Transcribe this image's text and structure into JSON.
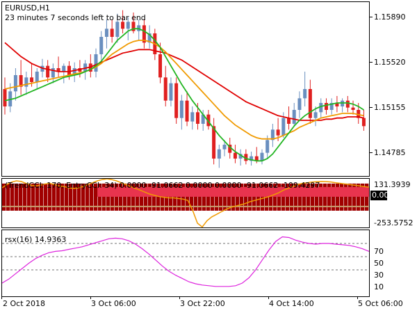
{
  "main_chart": {
    "symbol_title": "EURUSD,H1",
    "countdown": "23 minutes 7 seconds left to bar end",
    "price_labels": [
      "1.15890",
      "1.15520",
      "1.15155",
      "1.14785"
    ],
    "colors": {
      "bull": "#6a8fbf",
      "bear": "#e02020",
      "green_ma": "#22b522",
      "orange_ma": "#f09a00",
      "red_ma": "#e00000"
    }
  },
  "cci_panel": {
    "header": "(TrendCCI: 170, EntryCCI: 34)  0.0000 -91.0662 0.0000 0.0000 -91.0662 -109.4297",
    "scale_labels": [
      "131.3939",
      "0.00",
      "-253.5752"
    ],
    "current_value_badge": "0.00",
    "colors": {
      "histogram": "#a00000",
      "band": "#e8344e",
      "line": "#f09a00",
      "tan": "#c8a070"
    }
  },
  "rsx_panel": {
    "header": "rsx(16) 14.9363",
    "levels": [
      "70",
      "50",
      "30"
    ],
    "scale_labels": [
      "70",
      "50",
      "30",
      "10"
    ],
    "colors": {
      "line": "#dd22dd"
    }
  },
  "time_axis": [
    "2 Oct 2018",
    "3 Oct 06:00",
    "3 Oct 22:00",
    "4 Oct 14:00",
    "5 Oct 06:00"
  ],
  "chart_data": [
    {
      "type": "candlestick",
      "title": "EURUSD,H1",
      "ylim": [
        1.1455,
        1.1605
      ],
      "candles": [
        {
          "o": 1.153,
          "h": 1.154,
          "l": 1.1508,
          "c": 1.1515
        },
        {
          "o": 1.1515,
          "h": 1.1535,
          "l": 1.151,
          "c": 1.1528
        },
        {
          "o": 1.1528,
          "h": 1.1548,
          "l": 1.152,
          "c": 1.1542
        },
        {
          "o": 1.1542,
          "h": 1.1555,
          "l": 1.1525,
          "c": 1.1532
        },
        {
          "o": 1.1532,
          "h": 1.1545,
          "l": 1.1525,
          "c": 1.154
        },
        {
          "o": 1.154,
          "h": 1.1552,
          "l": 1.1532,
          "c": 1.1536
        },
        {
          "o": 1.1536,
          "h": 1.1548,
          "l": 1.153,
          "c": 1.1545
        },
        {
          "o": 1.1545,
          "h": 1.1556,
          "l": 1.154,
          "c": 1.155
        },
        {
          "o": 1.155,
          "h": 1.1555,
          "l": 1.1536,
          "c": 1.154
        },
        {
          "o": 1.154,
          "h": 1.1552,
          "l": 1.1535,
          "c": 1.1548
        },
        {
          "o": 1.1548,
          "h": 1.1558,
          "l": 1.154,
          "c": 1.1545
        },
        {
          "o": 1.1545,
          "h": 1.1552,
          "l": 1.1535,
          "c": 1.155
        },
        {
          "o": 1.155,
          "h": 1.1554,
          "l": 1.1538,
          "c": 1.1542
        },
        {
          "o": 1.1542,
          "h": 1.1553,
          "l": 1.1536,
          "c": 1.1548
        },
        {
          "o": 1.1548,
          "h": 1.1555,
          "l": 1.154,
          "c": 1.1545
        },
        {
          "o": 1.1545,
          "h": 1.1555,
          "l": 1.1538,
          "c": 1.1552
        },
        {
          "o": 1.1552,
          "h": 1.156,
          "l": 1.154,
          "c": 1.1545
        },
        {
          "o": 1.1545,
          "h": 1.1565,
          "l": 1.154,
          "c": 1.156
        },
        {
          "o": 1.156,
          "h": 1.158,
          "l": 1.1555,
          "c": 1.1575
        },
        {
          "o": 1.1575,
          "h": 1.159,
          "l": 1.1565,
          "c": 1.1582
        },
        {
          "o": 1.1582,
          "h": 1.159,
          "l": 1.157,
          "c": 1.1575
        },
        {
          "o": 1.1575,
          "h": 1.1595,
          "l": 1.157,
          "c": 1.1588
        },
        {
          "o": 1.1588,
          "h": 1.1598,
          "l": 1.1578,
          "c": 1.1582
        },
        {
          "o": 1.1582,
          "h": 1.1592,
          "l": 1.1572,
          "c": 1.1588
        },
        {
          "o": 1.1588,
          "h": 1.1596,
          "l": 1.1578,
          "c": 1.158
        },
        {
          "o": 1.158,
          "h": 1.159,
          "l": 1.1572,
          "c": 1.1585
        },
        {
          "o": 1.1585,
          "h": 1.159,
          "l": 1.1565,
          "c": 1.157
        },
        {
          "o": 1.157,
          "h": 1.1585,
          "l": 1.1565,
          "c": 1.1578
        },
        {
          "o": 1.1578,
          "h": 1.1582,
          "l": 1.1555,
          "c": 1.156
        },
        {
          "o": 1.156,
          "h": 1.157,
          "l": 1.1535,
          "c": 1.154
        },
        {
          "o": 1.154,
          "h": 1.155,
          "l": 1.1515,
          "c": 1.152
        },
        {
          "o": 1.152,
          "h": 1.154,
          "l": 1.1515,
          "c": 1.1535
        },
        {
          "o": 1.1535,
          "h": 1.154,
          "l": 1.15,
          "c": 1.1505
        },
        {
          "o": 1.1505,
          "h": 1.1525,
          "l": 1.1495,
          "c": 1.152
        },
        {
          "o": 1.152,
          "h": 1.1528,
          "l": 1.1498,
          "c": 1.1502
        },
        {
          "o": 1.1502,
          "h": 1.1515,
          "l": 1.1495,
          "c": 1.151
        },
        {
          "o": 1.151,
          "h": 1.1518,
          "l": 1.1495,
          "c": 1.15
        },
        {
          "o": 1.15,
          "h": 1.1512,
          "l": 1.1494,
          "c": 1.1508
        },
        {
          "o": 1.1508,
          "h": 1.1512,
          "l": 1.1495,
          "c": 1.1498
        },
        {
          "o": 1.1498,
          "h": 1.1505,
          "l": 1.1465,
          "c": 1.147
        },
        {
          "o": 1.147,
          "h": 1.1482,
          "l": 1.1462,
          "c": 1.1478
        },
        {
          "o": 1.1478,
          "h": 1.1486,
          "l": 1.1472,
          "c": 1.1482
        },
        {
          "o": 1.1482,
          "h": 1.1488,
          "l": 1.147,
          "c": 1.1475
        },
        {
          "o": 1.1475,
          "h": 1.1482,
          "l": 1.1466,
          "c": 1.147
        },
        {
          "o": 1.147,
          "h": 1.1478,
          "l": 1.1464,
          "c": 1.1474
        },
        {
          "o": 1.1474,
          "h": 1.1478,
          "l": 1.1465,
          "c": 1.1468
        },
        {
          "o": 1.1468,
          "h": 1.1476,
          "l": 1.1464,
          "c": 1.1472
        },
        {
          "o": 1.1472,
          "h": 1.148,
          "l": 1.1466,
          "c": 1.1468
        },
        {
          "o": 1.1468,
          "h": 1.1478,
          "l": 1.1465,
          "c": 1.1475
        },
        {
          "o": 1.1475,
          "h": 1.149,
          "l": 1.147,
          "c": 1.1486
        },
        {
          "o": 1.1486,
          "h": 1.15,
          "l": 1.148,
          "c": 1.1495
        },
        {
          "o": 1.1495,
          "h": 1.1505,
          "l": 1.1485,
          "c": 1.149
        },
        {
          "o": 1.149,
          "h": 1.151,
          "l": 1.1488,
          "c": 1.1505
        },
        {
          "o": 1.1505,
          "h": 1.1515,
          "l": 1.1495,
          "c": 1.15
        },
        {
          "o": 1.15,
          "h": 1.1518,
          "l": 1.1498,
          "c": 1.1512
        },
        {
          "o": 1.1512,
          "h": 1.1528,
          "l": 1.1505,
          "c": 1.1522
        },
        {
          "o": 1.1522,
          "h": 1.1545,
          "l": 1.1515,
          "c": 1.153
        },
        {
          "o": 1.153,
          "h": 1.1538,
          "l": 1.15,
          "c": 1.1505
        },
        {
          "o": 1.1505,
          "h": 1.1515,
          "l": 1.1498,
          "c": 1.151
        },
        {
          "o": 1.151,
          "h": 1.1522,
          "l": 1.1505,
          "c": 1.1518
        },
        {
          "o": 1.1518,
          "h": 1.1522,
          "l": 1.1508,
          "c": 1.1512
        },
        {
          "o": 1.1512,
          "h": 1.1522,
          "l": 1.1508,
          "c": 1.1518
        },
        {
          "o": 1.1518,
          "h": 1.1524,
          "l": 1.151,
          "c": 1.1515
        },
        {
          "o": 1.1515,
          "h": 1.1522,
          "l": 1.151,
          "c": 1.152
        },
        {
          "o": 1.152,
          "h": 1.1524,
          "l": 1.151,
          "c": 1.1514
        },
        {
          "o": 1.1514,
          "h": 1.152,
          "l": 1.1508,
          "c": 1.1512
        },
        {
          "o": 1.1512,
          "h": 1.1518,
          "l": 1.15,
          "c": 1.1505
        },
        {
          "o": 1.1505,
          "h": 1.1512,
          "l": 1.1494,
          "c": 1.1498
        }
      ],
      "ma_green": [
        1.152,
        1.1521,
        1.1522,
        1.1524,
        1.1526,
        1.1528,
        1.153,
        1.1532,
        1.1534,
        1.1536,
        1.1538,
        1.154,
        1.1541,
        1.1542,
        1.1543,
        1.1545,
        1.1547,
        1.155,
        1.1554,
        1.156,
        1.1566,
        1.1572,
        1.1576,
        1.158,
        1.1582,
        1.1582,
        1.158,
        1.1577,
        1.1572,
        1.1566,
        1.1558,
        1.155,
        1.1542,
        1.1534,
        1.1527,
        1.152,
        1.1514,
        1.1508,
        1.1502,
        1.1496,
        1.149,
        1.1485,
        1.148,
        1.1476,
        1.1473,
        1.147,
        1.1469,
        1.1468,
        1.1468,
        1.147,
        1.1474,
        1.148,
        1.1486,
        1.1492,
        1.1498,
        1.1503,
        1.1507,
        1.151,
        1.1513,
        1.1515,
        1.1516,
        1.1517,
        1.1518,
        1.1518,
        1.1518,
        1.1517,
        1.1515,
        1.1512
      ],
      "ma_orange": [
        1.153,
        1.1531,
        1.1532,
        1.1533,
        1.1534,
        1.1535,
        1.1536,
        1.1537,
        1.1538,
        1.1539,
        1.154,
        1.1541,
        1.1542,
        1.1543,
        1.1544,
        1.1545,
        1.1547,
        1.1549,
        1.1552,
        1.1556,
        1.156,
        1.1563,
        1.1566,
        1.1569,
        1.1571,
        1.1572,
        1.1572,
        1.1571,
        1.1569,
        1.1566,
        1.1562,
        1.1557,
        1.1552,
        1.1547,
        1.1542,
        1.1537,
        1.1532,
        1.1527,
        1.1522,
        1.1517,
        1.1512,
        1.1507,
        1.1503,
        1.1499,
        1.1496,
        1.1493,
        1.149,
        1.1488,
        1.1487,
        1.1487,
        1.1487,
        1.1488,
        1.149,
        1.1492,
        1.1494,
        1.1497,
        1.1499,
        1.1501,
        1.1503,
        1.1505,
        1.1506,
        1.1507,
        1.1508,
        1.1509,
        1.1509,
        1.1509,
        1.1508,
        1.1507
      ],
      "ma_red": [
        1.157,
        1.1566,
        1.1562,
        1.1558,
        1.1555,
        1.1552,
        1.155,
        1.1548,
        1.1547,
        1.1546,
        1.1545,
        1.1545,
        1.1545,
        1.1546,
        1.1547,
        1.1548,
        1.1549,
        1.1551,
        1.1553,
        1.1555,
        1.1557,
        1.1559,
        1.1561,
        1.1562,
        1.1563,
        1.1564,
        1.1564,
        1.1564,
        1.1563,
        1.1562,
        1.1561,
        1.1559,
        1.1557,
        1.1555,
        1.1552,
        1.1549,
        1.1546,
        1.1543,
        1.154,
        1.1537,
        1.1534,
        1.1531,
        1.1528,
        1.1525,
        1.1522,
        1.1519,
        1.1517,
        1.1515,
        1.1513,
        1.1511,
        1.1509,
        1.1507,
        1.1506,
        1.1505,
        1.1504,
        1.1503,
        1.1503,
        1.1503,
        1.1503,
        1.1503,
        1.1504,
        1.1504,
        1.1505,
        1.1505,
        1.1506,
        1.1506,
        1.1506,
        1.1505
      ]
    },
    {
      "type": "line",
      "title": "(TrendCCI: 170, EntryCCI: 34)",
      "ylim": [
        -253.5752,
        131.3939
      ],
      "orange_line": [
        60,
        85,
        105,
        115,
        110,
        95,
        80,
        75,
        80,
        90,
        95,
        85,
        75,
        70,
        60,
        55,
        60,
        70,
        85,
        100,
        115,
        125,
        131,
        125,
        115,
        100,
        85,
        70,
        55,
        40,
        25,
        10,
        0,
        -10,
        -15,
        -20,
        -20,
        -25,
        -30,
        -40,
        -120,
        -220,
        -250,
        -200,
        -170,
        -150,
        -130,
        -110,
        -95,
        -85,
        -75,
        -65,
        -50,
        -40,
        -30,
        -20,
        -10,
        5,
        20,
        40,
        55,
        70,
        85,
        95,
        100,
        105,
        108,
        110,
        109,
        106,
        100,
        95,
        90,
        85,
        80,
        75,
        70,
        65
      ],
      "rsx_line": [
        10,
        16,
        24,
        32,
        40,
        47,
        52,
        56,
        58,
        59,
        61,
        63,
        65,
        68,
        71,
        74,
        77,
        78,
        77,
        74,
        69,
        62,
        54,
        45,
        36,
        28,
        22,
        17,
        12,
        9,
        7,
        6,
        5,
        5,
        5,
        6,
        10,
        18,
        30,
        45,
        60,
        73,
        80,
        79,
        75,
        72,
        70,
        69,
        70,
        70,
        69,
        68,
        67,
        65,
        62,
        58
      ]
    },
    {
      "type": "line",
      "title": "rsx(16) 14.9363",
      "ylim": [
        -10,
        90
      ],
      "levels": [
        70,
        50,
        30
      ]
    }
  ]
}
